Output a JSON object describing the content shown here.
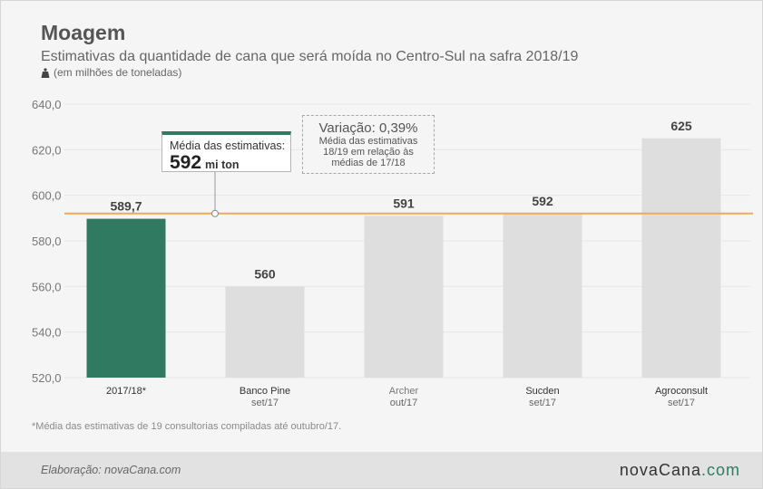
{
  "header": {
    "title": "Moagem",
    "subtitle": "Estimativas da quantidade de cana que será moída no Centro-Sul na safra 2018/19",
    "unit_note": "(em milhões de toneladas)"
  },
  "annotations": {
    "average": {
      "label": "Média das estimativas:",
      "value": "592",
      "unit": "mi ton"
    },
    "variation": {
      "title": "Variação: 0,39%",
      "note": "Média das estimativas 18/19 em relação às médias de 17/18"
    }
  },
  "footnote": "*Média das estimativas de 19 consultorias compiladas até outubro/17.",
  "footer": {
    "credit": "Elaboração: novaCana.com",
    "brand_main": "novaCana",
    "brand_suffix": ".com"
  },
  "colors": {
    "highlight_bar": "#317a62",
    "bar": "#dedede",
    "average_line": "#f0aa55",
    "grid": "#e6e6e6"
  },
  "chart_data": {
    "type": "bar",
    "title": "Moagem",
    "categories": [
      {
        "line1": "2017/18*",
        "line2": ""
      },
      {
        "line1": "Banco Pine",
        "line2": "set/17"
      },
      {
        "line1": "Archer",
        "line2": "out/17"
      },
      {
        "line1": "Sucden",
        "line2": "set/17"
      },
      {
        "line1": "Agroconsult",
        "line2": "set/17"
      }
    ],
    "values": [
      589.7,
      560,
      591,
      592,
      625
    ],
    "value_labels": [
      "589,7",
      "560",
      "591",
      "592",
      "625"
    ],
    "highlight_index": 0,
    "ylim": [
      520,
      640
    ],
    "yticks": [
      520,
      540,
      560,
      580,
      600,
      620,
      640
    ],
    "ytick_labels": [
      "520,0",
      "540,0",
      "560,0",
      "580,0",
      "600,0",
      "620,0",
      "640,0"
    ],
    "reference_line": 592,
    "grid": true,
    "legend": "none"
  }
}
